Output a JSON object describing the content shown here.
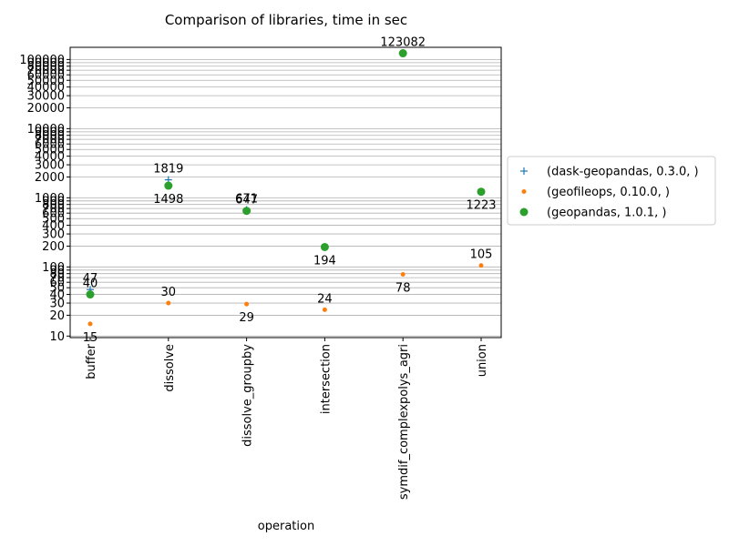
{
  "chart_data": {
    "type": "scatter",
    "title": "Comparison of libraries, time in sec",
    "xlabel": "operation",
    "ylabel": "",
    "yscale": "log",
    "ylim": [
      9.5,
      150000
    ],
    "grid": "y-major-and-minor",
    "legend_placement": "outside-right",
    "categories": [
      "buffer",
      "dissolve",
      "dissolve_groupby",
      "intersection",
      "symdif_complexpolys_agri",
      "union"
    ],
    "y_ticks": [
      10,
      20,
      30,
      40,
      50,
      60,
      70,
      80,
      90,
      100,
      200,
      300,
      400,
      500,
      600,
      700,
      800,
      900,
      1000,
      2000,
      3000,
      4000,
      5000,
      6000,
      7000,
      8000,
      9000,
      10000,
      20000,
      30000,
      40000,
      50000,
      60000,
      70000,
      80000,
      90000,
      100000
    ],
    "series": [
      {
        "name": "(dask-geopandas, 0.3.0, )",
        "marker": "plus",
        "color": "#1f77b4",
        "values": [
          47,
          1819,
          671,
          null,
          null,
          null
        ],
        "labels": [
          "47",
          "1819",
          "671",
          "",
          "",
          ""
        ]
      },
      {
        "name": "(geofileops, 0.10.0, )",
        "marker": "small-dot",
        "color": "#ff7f0e",
        "values": [
          15,
          30,
          29,
          24,
          78,
          105
        ],
        "labels": [
          "15",
          "30",
          "29",
          "24",
          "78",
          "105"
        ]
      },
      {
        "name": "(geopandas, 1.0.1, )",
        "marker": "circle",
        "color": "#2ca02c",
        "values": [
          40,
          1498,
          647,
          194,
          123082,
          1223
        ],
        "labels": [
          "40",
          "1498",
          "647",
          "194",
          "123082",
          "1223"
        ]
      }
    ],
    "label_positions": [
      [
        "above",
        "below",
        "above"
      ],
      [
        "above",
        "above",
        "below"
      ],
      [
        "above",
        "below",
        "above"
      ],
      [
        "",
        "above",
        "below"
      ],
      [
        "",
        "below",
        "above"
      ],
      [
        "",
        "above",
        "below"
      ]
    ]
  }
}
